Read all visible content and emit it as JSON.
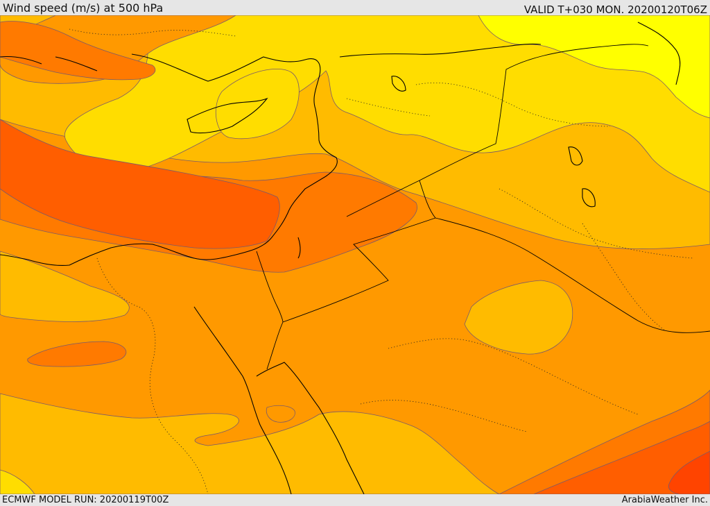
{
  "header": {
    "title": "Wind speed (m/s) at 500 hPa",
    "valid_time": "VALID T+030 MON. 20200120T06Z"
  },
  "footer": {
    "model_run": "ECMWF MODEL RUN: 20200119T00Z",
    "credit": "ArabiaWeather Inc."
  },
  "map": {
    "shading_colors": [
      "#ffff00",
      "#ffdd00",
      "#ffbb00",
      "#ff9900",
      "#ff7a00",
      "#ff5e00",
      "#ff4400"
    ],
    "contour_color": "#7a5a6a",
    "coastline_color": "#000000",
    "border_style": "dotted"
  }
}
